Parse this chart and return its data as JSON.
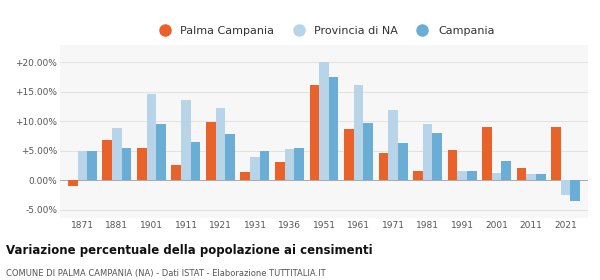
{
  "years": [
    1871,
    1881,
    1901,
    1911,
    1921,
    1931,
    1936,
    1951,
    1961,
    1971,
    1981,
    1991,
    2001,
    2011,
    2021
  ],
  "palma": [
    -1.0,
    6.8,
    5.5,
    2.5,
    9.9,
    1.3,
    3.0,
    16.2,
    8.7,
    4.6,
    1.6,
    5.1,
    9.0,
    2.0,
    9.0
  ],
  "provincia": [
    4.9,
    8.8,
    14.6,
    13.6,
    12.3,
    3.9,
    5.3,
    20.0,
    16.2,
    11.9,
    9.6,
    1.5,
    1.2,
    1.1,
    -2.5
  ],
  "campania": [
    4.9,
    5.5,
    9.6,
    6.4,
    7.8,
    5.0,
    5.4,
    17.5,
    9.7,
    6.3,
    8.0,
    1.5,
    3.2,
    1.1,
    -3.5
  ],
  "palma_color": "#e8622a",
  "provincia_color": "#b8d4e8",
  "campania_color": "#6aaed6",
  "title": "Variazione percentuale della popolazione ai censimenti",
  "subtitle": "COMUNE DI PALMA CAMPANIA (NA) - Dati ISTAT - Elaborazione TUTTITALIA.IT",
  "ylabel_ticks": [
    "-5.00%",
    "0.00%",
    "+5.00%",
    "+10.00%",
    "+15.00%",
    "+20.00%"
  ],
  "yticks": [
    -5.0,
    0.0,
    5.0,
    10.0,
    15.0,
    20.0
  ],
  "ylim": [
    -6.5,
    23.0
  ],
  "bar_width": 0.28,
  "bg_color": "#ffffff",
  "plot_bg_color": "#f7f7f7",
  "legend_labels": [
    "Palma Campania",
    "Provincia di NA",
    "Campania"
  ],
  "grid_color": "#dddddd",
  "tick_color": "#555555",
  "title_color": "#111111",
  "subtitle_color": "#555555"
}
